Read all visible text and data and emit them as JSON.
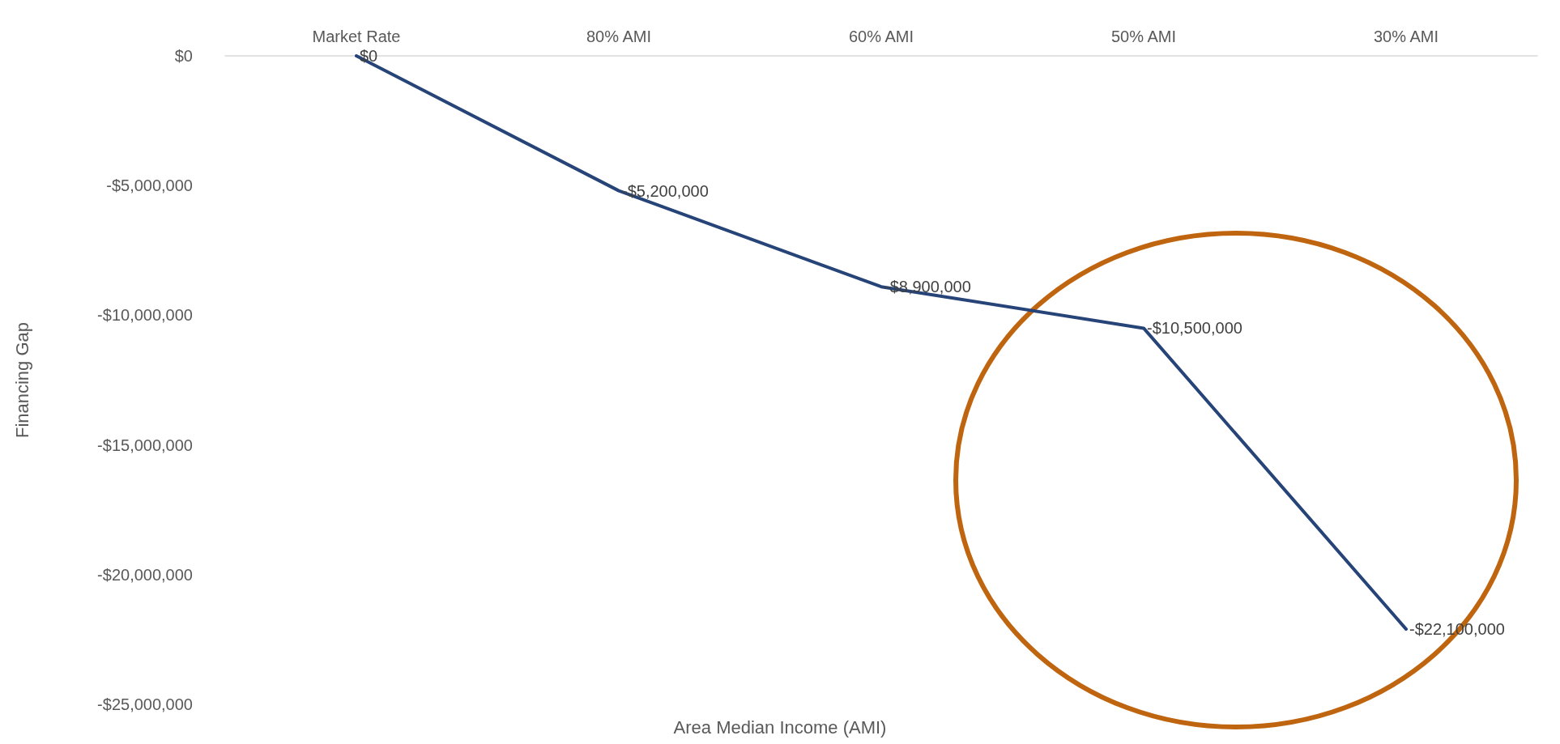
{
  "chart_data": {
    "type": "line",
    "xlabel": "Area Median Income (AMI)",
    "ylabel": "Financing Gap",
    "categories": [
      "Market Rate",
      "80% AMI",
      "60% AMI",
      "50% AMI",
      "30% AMI"
    ],
    "series": [
      {
        "color": "#264478",
        "values": [
          0,
          -5200000,
          -8900000,
          -10500000,
          -22100000
        ],
        "value_labels": [
          "$0",
          "-$5,200,000",
          "-$8,900,000",
          "-$10,500,000",
          "-$22,100,000"
        ]
      }
    ],
    "ylim": [
      -25000000,
      0
    ],
    "yticks": [
      {
        "value": 0,
        "label": "$0"
      },
      {
        "value": -5000000,
        "label": "-$5,000,000"
      },
      {
        "value": -10000000,
        "label": "-$10,000,000"
      },
      {
        "value": -15000000,
        "label": "-$15,000,000"
      },
      {
        "value": -20000000,
        "label": "-$20,000,000"
      },
      {
        "value": -25000000,
        "label": "-$25,000,000"
      }
    ],
    "grid": false,
    "marker": "none",
    "line_style": "solid"
  }
}
